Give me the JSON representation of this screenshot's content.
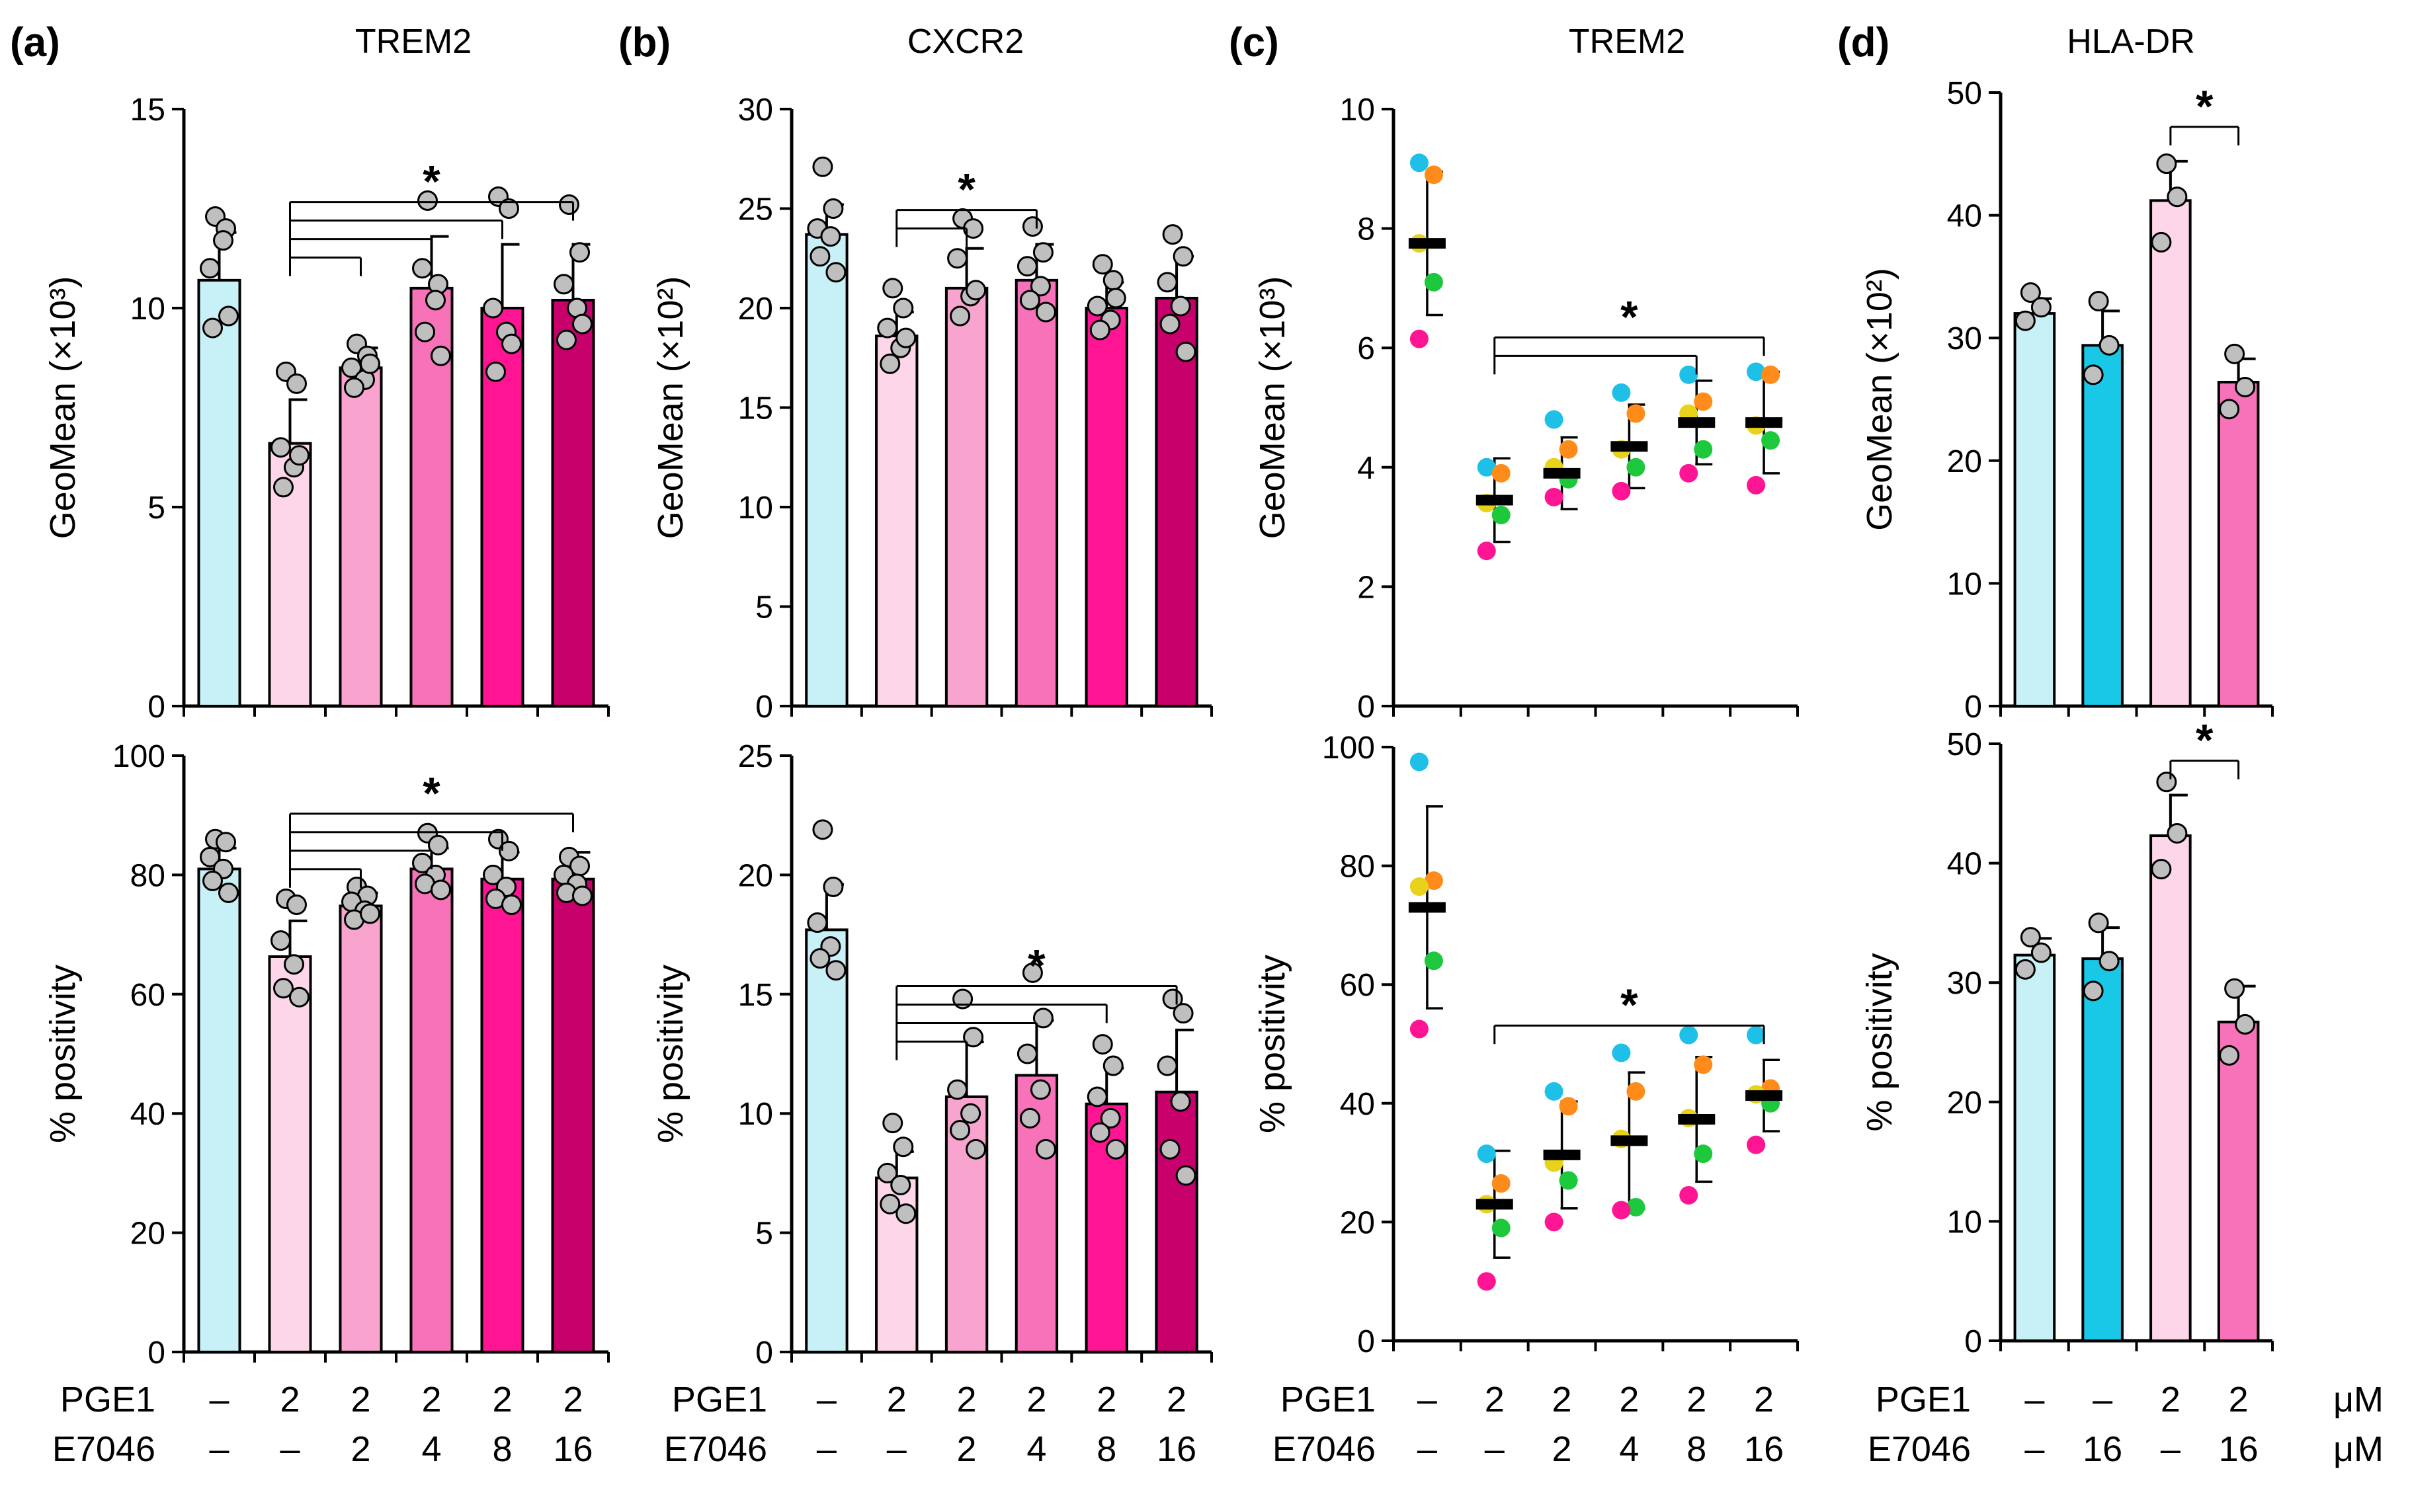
{
  "figure": {
    "condition_labels": {
      "pge1": "PGE1",
      "e7046": "E7046",
      "unit": "μM"
    },
    "conditions_six": {
      "pge1": [
        "–",
        "2",
        "2",
        "2",
        "2",
        "2"
      ],
      "e7046": [
        "–",
        "–",
        "2",
        "4",
        "8",
        "16"
      ]
    },
    "conditions_d": {
      "pge1": [
        "–",
        "–",
        "2",
        "2"
      ],
      "e7046": [
        "–",
        "16",
        "–",
        "16"
      ]
    },
    "sig_symbol": "*"
  },
  "chart_data": [
    {
      "id": "a1",
      "panel_label": "(a)",
      "title": "TREM2",
      "type": "bar",
      "ylabel": "GeoMean (×10³)",
      "ylim": [
        0,
        15
      ],
      "yticks": [
        0,
        5,
        10,
        15
      ],
      "values": [
        10.7,
        6.6,
        8.5,
        10.5,
        10.0,
        10.2
      ],
      "sd": [
        1.2,
        1.1,
        0.5,
        1.3,
        1.6,
        1.4
      ],
      "points": [
        [
          12.3,
          12.0,
          11.0,
          11.7,
          9.5,
          9.8
        ],
        [
          8.4,
          8.1,
          6.5,
          6.0,
          5.5,
          6.3
        ],
        [
          9.1,
          8.8,
          8.5,
          8.2,
          8.0,
          8.6
        ],
        [
          12.7,
          10.6,
          11.0,
          10.2,
          9.4,
          8.8
        ],
        [
          12.8,
          12.5,
          10.0,
          9.4,
          8.4,
          9.1
        ],
        [
          12.6,
          11.4,
          10.6,
          10.0,
          9.2,
          9.6
        ]
      ],
      "colors": [
        "#c7f0f7",
        "#fdd6ea",
        "#f9a3cf",
        "#f772b8",
        "#ff1493",
        "#c8006b"
      ],
      "brackets": [
        {
          "from": 1,
          "to": [
            2,
            3,
            4,
            5
          ],
          "star_over": 3
        }
      ],
      "show_cond": false
    },
    {
      "id": "b1",
      "panel_label": "(b)",
      "title": "CXCR2",
      "type": "bar",
      "ylabel": "GeoMean (×10²)",
      "ylim": [
        0,
        30
      ],
      "yticks": [
        0,
        5,
        10,
        15,
        20,
        25,
        30
      ],
      "values": [
        23.7,
        18.6,
        21.0,
        21.4,
        20.0,
        20.5
      ],
      "sd": [
        1.5,
        1.2,
        2.0,
        1.8,
        1.3,
        2.1
      ],
      "points": [
        [
          27.1,
          25.0,
          24.0,
          23.6,
          22.6,
          21.8
        ],
        [
          21.0,
          20.0,
          19.0,
          18.0,
          17.2,
          18.5
        ],
        [
          24.5,
          24.0,
          22.5,
          20.6,
          19.6,
          20.9
        ],
        [
          24.1,
          22.8,
          22.1,
          21.1,
          20.4,
          19.8
        ],
        [
          22.2,
          21.4,
          20.1,
          19.4,
          18.9,
          20.5
        ],
        [
          23.7,
          22.6,
          21.3,
          20.1,
          19.2,
          17.8
        ]
      ],
      "colors": [
        "#c7f0f7",
        "#fdd6ea",
        "#f9a3cf",
        "#f772b8",
        "#ff1493",
        "#c8006b"
      ],
      "brackets": [
        {
          "from": 1,
          "to": [
            2,
            3
          ],
          "star_over": 2
        }
      ],
      "show_cond": false
    },
    {
      "id": "c1",
      "panel_label": "(c)",
      "title": "TREM2",
      "type": "scatter",
      "ylabel": "GeoMean (×10³)",
      "ylim": [
        0,
        10
      ],
      "yticks": [
        0,
        2,
        4,
        6,
        8,
        10
      ],
      "values": [
        7.75,
        3.45,
        3.9,
        4.35,
        4.75,
        4.75
      ],
      "sd": [
        1.2,
        0.7,
        0.6,
        0.7,
        0.7,
        0.85
      ],
      "points": [
        [
          9.1,
          8.9,
          7.75,
          7.1,
          6.15
        ],
        [
          4.0,
          3.9,
          3.4,
          3.2,
          2.6
        ],
        [
          4.8,
          4.3,
          4.0,
          3.8,
          3.5
        ],
        [
          5.25,
          4.9,
          4.3,
          4.0,
          3.6
        ],
        [
          5.55,
          5.1,
          4.9,
          4.3,
          3.9
        ],
        [
          5.6,
          5.55,
          4.7,
          4.45,
          3.7
        ]
      ],
      "point_colors": [
        "#1ec0e8",
        "#ff8c1a",
        "#e8d21a",
        "#1ec83c",
        "#ff1493"
      ],
      "brackets": [
        {
          "from": 1,
          "to": [
            4,
            5
          ],
          "star_over": 3
        }
      ],
      "show_cond": false
    },
    {
      "id": "d1",
      "panel_label": "(d)",
      "title": "HLA-DR",
      "type": "bar",
      "ylabel": "GeoMean (×10²)",
      "ylim": [
        0,
        50
      ],
      "yticks": [
        0,
        10,
        20,
        30,
        40,
        50
      ],
      "values": [
        32.0,
        29.4,
        41.2,
        26.4
      ],
      "sd": [
        1.2,
        2.8,
        3.2,
        1.9
      ],
      "points": [
        [
          33.7,
          32.5,
          31.4
        ],
        [
          33.0,
          29.4,
          27.0
        ],
        [
          44.2,
          41.5,
          37.8
        ],
        [
          28.7,
          26.0,
          24.2
        ]
      ],
      "colors": [
        "#c7f0f7",
        "#18c8e6",
        "#fdd6ea",
        "#f772b8"
      ],
      "brackets": [
        {
          "from": 2,
          "to": [
            3
          ],
          "star_over": 2.5
        }
      ],
      "show_cond": false
    },
    {
      "id": "a2",
      "type": "bar",
      "ylabel": "% positivity",
      "ylim": [
        0,
        100
      ],
      "yticks": [
        0,
        20,
        40,
        60,
        80,
        100
      ],
      "values": [
        81.0,
        66.3,
        74.8,
        81.0,
        79.3,
        79.3
      ],
      "sd": [
        3.5,
        6.0,
        2.2,
        3.5,
        4.5,
        4.5
      ],
      "points": [
        [
          86.0,
          85.5,
          83.0,
          81.0,
          79.0,
          77.0
        ],
        [
          76.0,
          75.0,
          69.0,
          65.0,
          61.0,
          59.5
        ],
        [
          78.0,
          76.5,
          75.5,
          74.0,
          72.5,
          73.5
        ],
        [
          87.0,
          85.0,
          82.0,
          80.0,
          78.5,
          77.5
        ],
        [
          86.0,
          84.0,
          80.0,
          78.0,
          76.0,
          75.0
        ],
        [
          83.0,
          81.5,
          80.0,
          78.5,
          77.0,
          76.5
        ]
      ],
      "colors": [
        "#c7f0f7",
        "#fdd6ea",
        "#f9a3cf",
        "#f772b8",
        "#ff1493",
        "#c8006b"
      ],
      "brackets": [
        {
          "from": 1,
          "to": [
            2,
            3,
            4,
            5
          ],
          "star_over": 3
        }
      ],
      "show_cond": true,
      "cond_set": "six"
    },
    {
      "id": "b2",
      "type": "bar",
      "ylabel": "% positivity",
      "ylim": [
        0,
        25
      ],
      "yticks": [
        0,
        5,
        10,
        15,
        20,
        25
      ],
      "values": [
        17.7,
        7.3,
        10.7,
        11.6,
        10.4,
        10.9
      ],
      "sd": [
        1.9,
        1.1,
        2.3,
        2.3,
        1.5,
        2.6
      ],
      "points": [
        [
          21.9,
          19.5,
          18.0,
          17.0,
          16.5,
          16.0
        ],
        [
          9.6,
          8.6,
          7.5,
          7.0,
          6.2,
          5.8
        ],
        [
          14.8,
          13.2,
          11.0,
          10.0,
          9.3,
          8.5
        ],
        [
          15.9,
          14.0,
          12.5,
          11.0,
          9.8,
          8.5
        ],
        [
          12.9,
          12.0,
          10.7,
          9.8,
          9.2,
          8.5
        ],
        [
          14.8,
          14.2,
          12.0,
          10.5,
          8.5,
          7.4
        ]
      ],
      "colors": [
        "#c7f0f7",
        "#fdd6ea",
        "#f9a3cf",
        "#f772b8",
        "#ff1493",
        "#c8006b"
      ],
      "brackets": [
        {
          "from": 1,
          "to": [
            2,
            3,
            4,
            5
          ],
          "star_over": 3
        }
      ],
      "show_cond": true,
      "cond_set": "six"
    },
    {
      "id": "c2",
      "type": "scatter",
      "ylabel": "% positivity",
      "ylim": [
        0,
        100
      ],
      "yticks": [
        0,
        20,
        40,
        60,
        80,
        100
      ],
      "values": [
        73.0,
        23.0,
        31.3,
        33.7,
        37.3,
        41.3
      ],
      "sd": [
        17.0,
        9.0,
        9.0,
        11.5,
        10.5,
        6.0
      ],
      "points": [
        [
          97.5,
          77.5,
          76.5,
          64.0,
          52.5
        ],
        [
          31.5,
          26.5,
          23.0,
          19.0,
          10.0
        ],
        [
          42.0,
          39.5,
          30.0,
          27.0,
          20.0
        ],
        [
          48.5,
          42.0,
          34.0,
          22.5,
          22.0
        ],
        [
          51.5,
          46.5,
          37.5,
          31.5,
          24.5
        ],
        [
          51.5,
          42.5,
          41.5,
          40.0,
          33.0
        ]
      ],
      "point_colors": [
        "#1ec0e8",
        "#ff8c1a",
        "#e8d21a",
        "#1ec83c",
        "#ff1493"
      ],
      "brackets": [
        {
          "from": 1,
          "to": [
            5
          ],
          "star_over": 3
        }
      ],
      "show_cond": true,
      "cond_set": "six"
    },
    {
      "id": "d2",
      "type": "bar",
      "ylabel": "% positivity",
      "ylim": [
        0,
        50
      ],
      "yticks": [
        0,
        10,
        20,
        30,
        40,
        50
      ],
      "values": [
        32.3,
        32.0,
        42.3,
        26.7
      ],
      "sd": [
        1.4,
        2.6,
        3.4,
        3.0
      ],
      "points": [
        [
          33.8,
          32.5,
          31.1
        ],
        [
          35.0,
          31.8,
          29.3
        ],
        [
          46.8,
          42.5,
          39.5
        ],
        [
          29.5,
          26.5,
          23.9
        ]
      ],
      "colors": [
        "#c7f0f7",
        "#18c8e6",
        "#fdd6ea",
        "#f772b8"
      ],
      "brackets": [
        {
          "from": 2,
          "to": [
            3
          ],
          "star_over": 2.5
        }
      ],
      "show_cond": true,
      "cond_set": "d"
    }
  ]
}
